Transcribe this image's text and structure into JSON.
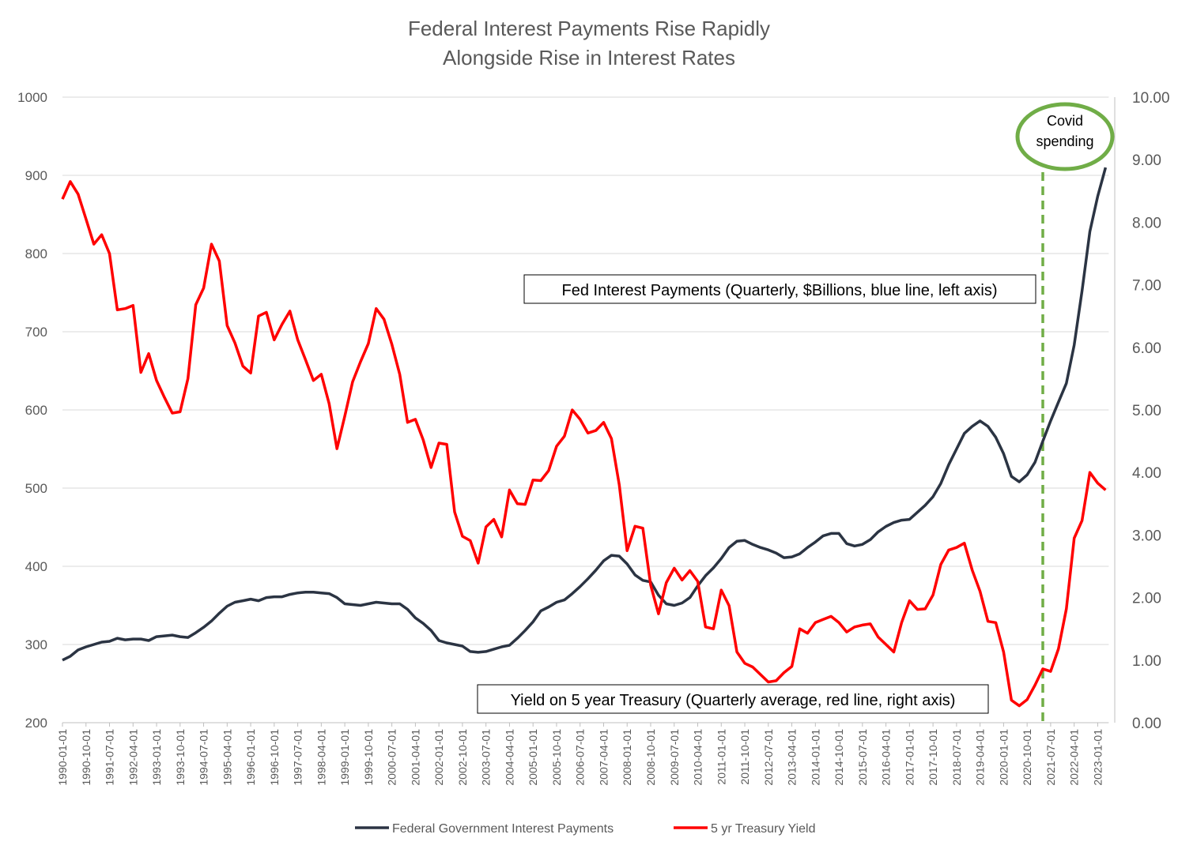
{
  "chart_data": {
    "type": "line",
    "title_lines": [
      "Federal Interest Payments Rise Rapidly",
      "Alongside Rise in Interest Rates"
    ],
    "left_axis": {
      "range": [
        200,
        1000
      ],
      "ticks": [
        "200",
        "300",
        "400",
        "500",
        "600",
        "700",
        "800",
        "900",
        "1000"
      ]
    },
    "right_axis": {
      "range": [
        0,
        10
      ],
      "ticks": [
        "0.00",
        "1.00",
        "2.00",
        "3.00",
        "4.00",
        "5.00",
        "6.00",
        "7.00",
        "8.00",
        "9.00",
        "10.00"
      ]
    },
    "x_tick_labels": [
      "1990-01-01",
      "1990-10-01",
      "1991-07-01",
      "1992-04-01",
      "1993-01-01",
      "1993-10-01",
      "1994-07-01",
      "1995-04-01",
      "1996-01-01",
      "1996-10-01",
      "1997-07-01",
      "1998-04-01",
      "1999-01-01",
      "1999-10-01",
      "2000-07-01",
      "2001-04-01",
      "2002-01-01",
      "2002-10-01",
      "2003-07-01",
      "2004-04-01",
      "2005-01-01",
      "2005-10-01",
      "2006-07-01",
      "2007-04-01",
      "2008-01-01",
      "2008-10-01",
      "2009-07-01",
      "2010-04-01",
      "2011-01-01",
      "2011-10-01",
      "2012-07-01",
      "2013-04-01",
      "2014-01-01",
      "2014-10-01",
      "2015-07-01",
      "2016-04-01",
      "2017-01-01",
      "2017-10-01",
      "2018-07-01",
      "2019-04-01",
      "2020-01-01",
      "2020-10-01",
      "2021-07-01",
      "2022-04-01",
      "2023-01-01"
    ],
    "x_start": "1990-01-01",
    "x_step": "quarterly",
    "grid": true,
    "legend_position": "bottom",
    "series": [
      {
        "name": "Federal Government Interest Payments",
        "axis": "left",
        "color": "#2b3443",
        "values": [
          280,
          285,
          293,
          297,
          300,
          303,
          304,
          308,
          306,
          307,
          307,
          305,
          310,
          311,
          312,
          310,
          309,
          315,
          322,
          330,
          340,
          349,
          354,
          356,
          358,
          356,
          360,
          361,
          361,
          364,
          366,
          367,
          367,
          366,
          365,
          360,
          352,
          351,
          350,
          352,
          354,
          353,
          352,
          352,
          345,
          334,
          327,
          318,
          305,
          302,
          300,
          298,
          291,
          290,
          291,
          294,
          297,
          299,
          308,
          318,
          329,
          343,
          348,
          354,
          357,
          365,
          374,
          384,
          395,
          407,
          414,
          413,
          403,
          389,
          382,
          380,
          363,
          352,
          350,
          353,
          360,
          375,
          388,
          398,
          410,
          424,
          432,
          433,
          428,
          424,
          421,
          417,
          411,
          412,
          416,
          424,
          431,
          439,
          442,
          442,
          429,
          426,
          428,
          434,
          444,
          451,
          456,
          459,
          460,
          469,
          478,
          489,
          506,
          530,
          550,
          570,
          579,
          586,
          579,
          565,
          544,
          515,
          508,
          517,
          533,
          560,
          586,
          610,
          634,
          683,
          752,
          828,
          873,
          910
        ]
      },
      {
        "name": "5 yr Treasury Yield",
        "axis": "right",
        "color": "#ff0000",
        "values": [
          8.37,
          8.65,
          8.45,
          8.05,
          7.65,
          7.8,
          7.5,
          6.6,
          6.62,
          6.67,
          5.6,
          5.9,
          5.47,
          5.2,
          4.95,
          4.97,
          5.5,
          6.68,
          6.95,
          7.65,
          7.38,
          6.35,
          6.07,
          5.7,
          5.59,
          6.5,
          6.56,
          6.12,
          6.37,
          6.58,
          6.12,
          5.8,
          5.47,
          5.57,
          5.1,
          4.38,
          4.9,
          5.45,
          5.77,
          6.06,
          6.62,
          6.45,
          6.05,
          5.57,
          4.8,
          4.85,
          4.52,
          4.08,
          4.47,
          4.45,
          3.37,
          2.98,
          2.91,
          2.55,
          3.13,
          3.25,
          2.97,
          3.72,
          3.5,
          3.49,
          3.88,
          3.87,
          4.03,
          4.42,
          4.58,
          5.0,
          4.85,
          4.63,
          4.67,
          4.8,
          4.54,
          3.8,
          2.75,
          3.14,
          3.11,
          2.2,
          1.74,
          2.24,
          2.47,
          2.28,
          2.43,
          2.26,
          1.53,
          1.5,
          2.12,
          1.87,
          1.13,
          0.95,
          0.89,
          0.77,
          0.65,
          0.67,
          0.8,
          0.9,
          1.5,
          1.43,
          1.6,
          1.65,
          1.7,
          1.6,
          1.45,
          1.53,
          1.56,
          1.58,
          1.37,
          1.25,
          1.13,
          1.6,
          1.95,
          1.81,
          1.82,
          2.04,
          2.53,
          2.76,
          2.8,
          2.87,
          2.44,
          2.1,
          1.62,
          1.6,
          1.13,
          0.36,
          0.27,
          0.37,
          0.6,
          0.86,
          0.82,
          1.18,
          1.82,
          2.95,
          3.23,
          4.0,
          3.83,
          3.72
        ]
      }
    ]
  },
  "annotations": {
    "payments_box": "Fed Interest Payments (Quarterly, $Billions, blue line, left axis)",
    "yield_box": "Yield on 5 year Treasury (Quarterly average, red line, right axis)",
    "covid_line1": "Covid",
    "covid_line2": "spending",
    "covid_date": "2021-04-01",
    "covid_color": "#70ad47"
  },
  "legend": {
    "series1_label": "Federal Government Interest Payments",
    "series2_label": "5 yr Treasury Yield"
  }
}
